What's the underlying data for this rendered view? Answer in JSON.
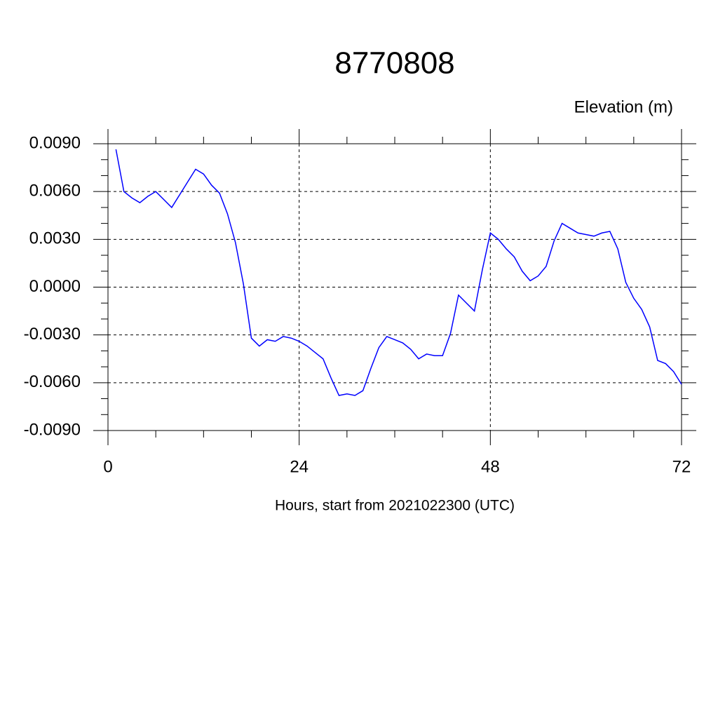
{
  "chart_data": {
    "type": "line",
    "title": "8770808",
    "y_label": "Elevation (m)",
    "x_label": "Hours, start from 2021022300 (UTC)",
    "x": [
      1,
      2,
      3,
      4,
      5,
      6,
      7,
      8,
      9,
      10,
      11,
      12,
      13,
      14,
      15,
      16,
      17,
      18,
      19,
      20,
      21,
      22,
      23,
      24,
      25,
      26,
      27,
      28,
      29,
      30,
      31,
      32,
      33,
      34,
      35,
      36,
      37,
      38,
      39,
      40,
      41,
      42,
      43,
      44,
      45,
      46,
      47,
      48,
      49,
      50,
      51,
      52,
      53,
      54,
      55,
      56,
      57,
      58,
      59,
      60,
      61,
      62,
      63,
      64,
      65,
      66,
      67,
      68,
      69,
      70,
      71,
      72
    ],
    "series": [
      {
        "color": "#0000ff",
        "values": [
          0.00865,
          0.006,
          0.0056,
          0.0053,
          0.0057,
          0.006,
          0.0055,
          0.005,
          0.0058,
          0.0066,
          0.0074,
          0.0071,
          0.0064,
          0.0059,
          0.0046,
          0.0028,
          0.0002,
          -0.0032,
          -0.0037,
          -0.0033,
          -0.0034,
          -0.0031,
          -0.0032,
          -0.0034,
          -0.0037,
          -0.0041,
          -0.0045,
          -0.0057,
          -0.0068,
          -0.0067,
          -0.0068,
          -0.0065,
          -0.0051,
          -0.0038,
          -0.0031,
          -0.0033,
          -0.0035,
          -0.0039,
          -0.0045,
          -0.0042,
          -0.0043,
          -0.0043,
          -0.0029,
          -0.0005,
          -0.001,
          -0.0015,
          0.0011,
          0.0034,
          0.003,
          0.0024,
          0.0019,
          0.001,
          0.0004,
          0.0007,
          0.0013,
          0.0029,
          0.004,
          0.0037,
          0.0034,
          0.0033,
          0.0032,
          0.0034,
          0.0035,
          0.0024,
          0.0003,
          -0.0007,
          -0.0014,
          -0.0025,
          -0.0046,
          -0.0048,
          -0.0053,
          -0.0061
        ]
      }
    ],
    "xlim": [
      0,
      72
    ],
    "xticks": [
      0,
      24,
      48,
      72
    ],
    "xminorticks": [
      6,
      12,
      18,
      30,
      36,
      42,
      54,
      60,
      66
    ],
    "ylim": [
      -0.009,
      0.009
    ],
    "yticks": [
      {
        "value": 0.009,
        "label": "0.0090"
      },
      {
        "value": 0.006,
        "label": "0.0060"
      },
      {
        "value": 0.003,
        "label": "0.0030"
      },
      {
        "value": 0,
        "label": "0.0000"
      },
      {
        "value": -0.003,
        "label": "-0.0030"
      },
      {
        "value": -0.006,
        "label": "-0.0060"
      },
      {
        "value": -0.009,
        "label": "-0.0090"
      }
    ],
    "yminorticks": [
      0.008,
      0.007,
      0.005,
      0.004,
      0.002,
      0.001,
      -0.001,
      -0.002,
      -0.004,
      -0.005,
      -0.007,
      -0.008
    ],
    "grid": true
  }
}
